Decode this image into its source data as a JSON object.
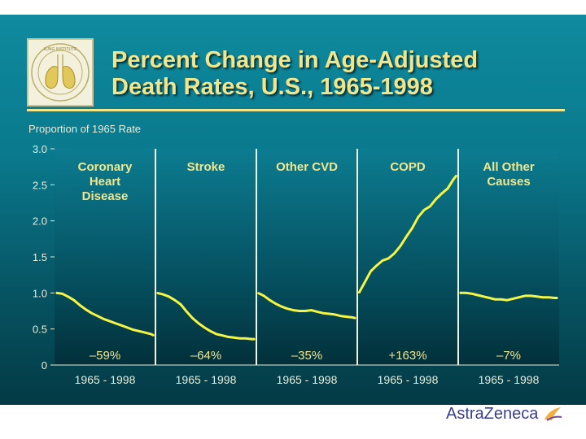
{
  "slide": {
    "title_line1": "Percent Change in Age-Adjusted",
    "title_line2": "Death Rates, U.S., 1965-1998",
    "logo_text": "LUNG INSTITUTE",
    "brand": "AstraZeneca"
  },
  "colors": {
    "title": "#f2e68c",
    "line": "#f5f542",
    "background": "#0a7a8e"
  },
  "chart_data": {
    "type": "line",
    "ylabel": "Proportion of 1965 Rate",
    "ylim": [
      0,
      3.0
    ],
    "yticks": [
      "3.0",
      "2.5",
      "2.0",
      "1.5",
      "1.0",
      "0.5",
      "0"
    ],
    "ytick_values": [
      3.0,
      2.5,
      2.0,
      1.5,
      1.0,
      0.5,
      0
    ],
    "panels": [
      {
        "name": "Coronary Heart Disease",
        "label_lines": [
          "Coronary",
          "Heart",
          "Disease"
        ],
        "change": "–59%",
        "xlabel": "1965 - 1998",
        "years": [
          1965,
          1967,
          1969,
          1971,
          1973,
          1975,
          1977,
          1979,
          1981,
          1983,
          1985,
          1987,
          1989,
          1991,
          1993,
          1995,
          1997,
          1998
        ],
        "values": [
          1.0,
          0.99,
          0.95,
          0.9,
          0.83,
          0.77,
          0.72,
          0.68,
          0.64,
          0.61,
          0.58,
          0.55,
          0.52,
          0.49,
          0.47,
          0.45,
          0.43,
          0.41
        ]
      },
      {
        "name": "Stroke",
        "label_lines": [
          "Stroke"
        ],
        "change": "–64%",
        "xlabel": "1965 - 1998",
        "years": [
          1965,
          1967,
          1969,
          1971,
          1973,
          1975,
          1977,
          1979,
          1981,
          1983,
          1985,
          1987,
          1989,
          1991,
          1993,
          1995,
          1997,
          1998
        ],
        "values": [
          1.0,
          0.98,
          0.95,
          0.9,
          0.84,
          0.74,
          0.65,
          0.58,
          0.52,
          0.47,
          0.43,
          0.41,
          0.39,
          0.38,
          0.37,
          0.37,
          0.36,
          0.36
        ]
      },
      {
        "name": "Other CVD",
        "label_lines": [
          "Other CVD"
        ],
        "change": "–35%",
        "xlabel": "1965 - 1998",
        "years": [
          1965,
          1967,
          1969,
          1971,
          1973,
          1975,
          1977,
          1979,
          1981,
          1983,
          1985,
          1987,
          1989,
          1991,
          1993,
          1995,
          1997,
          1998
        ],
        "values": [
          1.0,
          0.96,
          0.9,
          0.85,
          0.81,
          0.78,
          0.76,
          0.75,
          0.75,
          0.76,
          0.74,
          0.72,
          0.71,
          0.7,
          0.68,
          0.67,
          0.66,
          0.65
        ]
      },
      {
        "name": "COPD",
        "label_lines": [
          "COPD"
        ],
        "change": "+163%",
        "xlabel": "1965 - 1998",
        "years": [
          1965,
          1967,
          1969,
          1971,
          1973,
          1975,
          1977,
          1979,
          1981,
          1983,
          1985,
          1987,
          1989,
          1991,
          1993,
          1995,
          1997,
          1998
        ],
        "values": [
          1.0,
          1.15,
          1.3,
          1.38,
          1.45,
          1.48,
          1.55,
          1.65,
          1.78,
          1.9,
          2.05,
          2.15,
          2.2,
          2.3,
          2.38,
          2.45,
          2.58,
          2.63
        ]
      },
      {
        "name": "All Other Causes",
        "label_lines": [
          "All Other",
          "Causes"
        ],
        "change": "–7%",
        "xlabel": "1965 - 1998",
        "years": [
          1965,
          1967,
          1969,
          1971,
          1973,
          1975,
          1977,
          1979,
          1981,
          1983,
          1985,
          1987,
          1989,
          1991,
          1993,
          1995,
          1997,
          1998
        ],
        "values": [
          1.0,
          1.0,
          0.99,
          0.97,
          0.95,
          0.93,
          0.91,
          0.91,
          0.9,
          0.92,
          0.94,
          0.96,
          0.96,
          0.95,
          0.94,
          0.94,
          0.93,
          0.93
        ]
      }
    ]
  }
}
